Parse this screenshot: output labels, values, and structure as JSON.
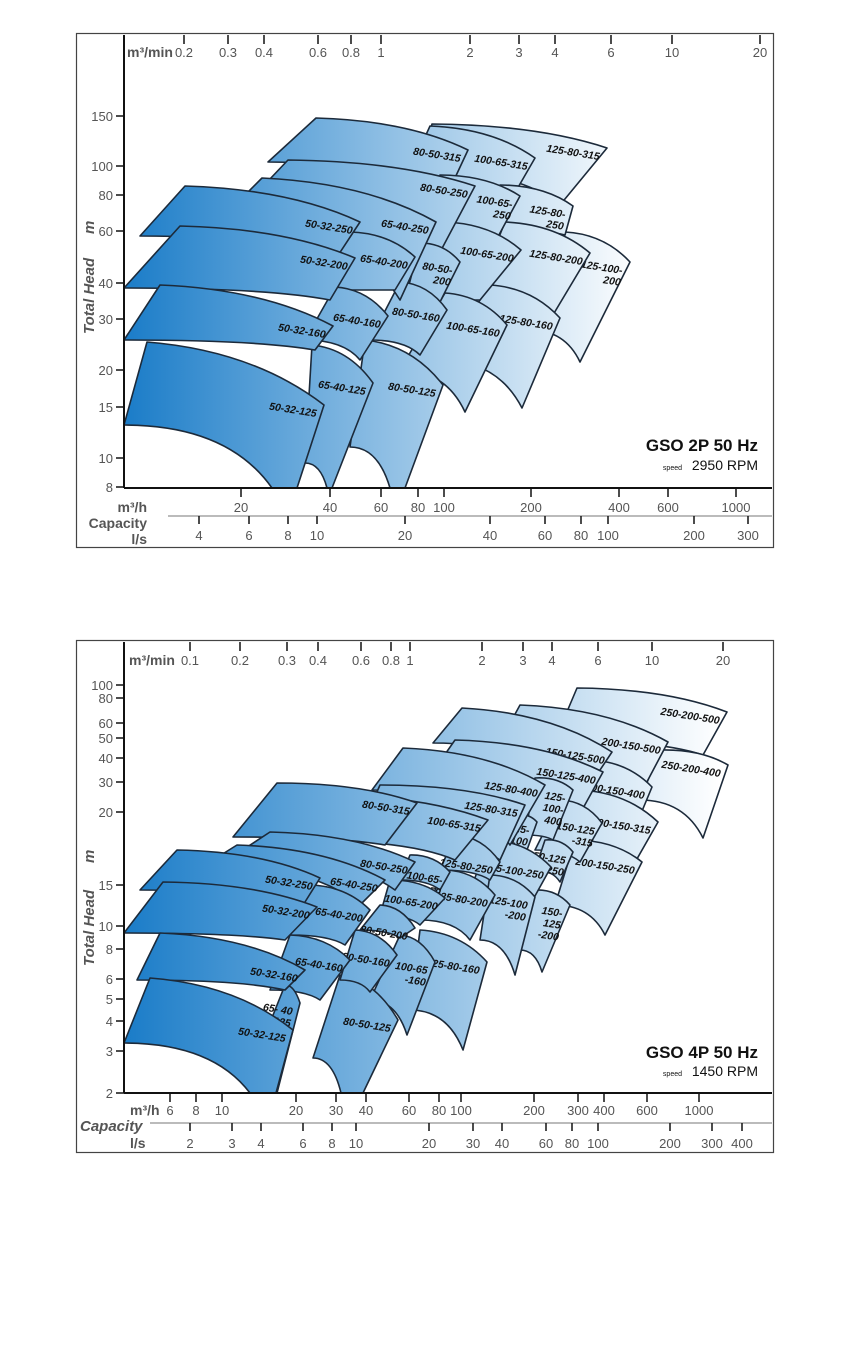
{
  "chart_data": [
    {
      "type": "area",
      "title": "GSO 2P 50 Hz",
      "speed_label": "speed",
      "speed": "2950 RPM",
      "ylabel": "Total Head",
      "yunit": "m",
      "y_scale": "log",
      "y_ticks": [
        "150",
        "100",
        "80",
        "60",
        "40",
        "30",
        "20",
        "15",
        "10",
        "8"
      ],
      "x_top_unit": "m³/min",
      "x_top_ticks": [
        "0.2",
        "0.3",
        "0.4",
        "0.6",
        "0.8",
        "1",
        "2",
        "3",
        "4",
        "6",
        "10",
        "20"
      ],
      "x_m3h_unit": "m³/h",
      "x_m3h_ticks": [
        "20",
        "40",
        "60",
        "80",
        "100",
        "200",
        "400",
        "600",
        "1000"
      ],
      "capacity_label": "Capacity",
      "x_ls_unit": "l/s",
      "x_ls_ticks": [
        "4",
        "6",
        "8",
        "10",
        "20",
        "40",
        "60",
        "80",
        "100",
        "200",
        "300"
      ],
      "regions": [
        "125-80-315",
        "100-65-315",
        "80-50-315",
        "125-100-200",
        "125-80-250",
        "125-80-200",
        "125-80-160",
        "100-65-250",
        "100-65-200",
        "100-65-160",
        "80-50-250",
        "80-50-200",
        "80-50-160",
        "80-50-125",
        "65-40-250",
        "65-40-200",
        "65-40-160",
        "65-40-125",
        "50-32-250",
        "50-32-200",
        "50-32-160",
        "50-32-125"
      ],
      "fill_gradient": [
        "#1a7cc8",
        "#ffffff"
      ]
    },
    {
      "type": "area",
      "title": "GSO 4P 50 Hz",
      "speed_label": "speed",
      "speed": "1450 RPM",
      "ylabel": "Total Head",
      "yunit": "m",
      "y_scale": "log",
      "y_ticks": [
        "100",
        "80",
        "60",
        "50",
        "40",
        "30",
        "20",
        "15",
        "10",
        "8",
        "6",
        "5",
        "4",
        "3",
        "2"
      ],
      "x_top_unit": "m³/min",
      "x_top_ticks": [
        "0.1",
        "0.2",
        "0.3",
        "0.4",
        "0.6",
        "0.8",
        "1",
        "2",
        "3",
        "4",
        "6",
        "10",
        "20"
      ],
      "x_m3h_unit": "m³/h",
      "x_m3h_ticks": [
        "6",
        "8",
        "10",
        "20",
        "30",
        "40",
        "60",
        "80",
        "100",
        "200",
        "300",
        "400",
        "600",
        "1000"
      ],
      "capacity_label": "Capacity",
      "x_ls_unit": "l/s",
      "x_ls_ticks": [
        "2",
        "3",
        "4",
        "6",
        "8",
        "10",
        "20",
        "30",
        "40",
        "60",
        "80",
        "100",
        "200",
        "300",
        "400"
      ],
      "regions": [
        "250-200-500",
        "250-200-400",
        "200-150-500",
        "200-150-400",
        "200-150-315",
        "200-150-250",
        "150-125-500",
        "150-125-400",
        "150-125-315",
        "150-125-250",
        "150-125-200",
        "125-100-400",
        "125-100-315",
        "125-100-250",
        "125-100-200",
        "125-80-400",
        "125-80-315",
        "125-80-250",
        "125-80-200",
        "125-80-160",
        "100-65-315",
        "100-65-250",
        "100-65-200",
        "100-65-160",
        "80-50-315",
        "80-50-250",
        "80-50-200",
        "80-50-125",
        "80-50-160",
        "65-40-250",
        "65-40-200",
        "65-40-160",
        "65-40-125",
        "50-32-250",
        "50-32-200",
        "50-32-160",
        "50-32-125"
      ],
      "fill_gradient": [
        "#1a7cc8",
        "#ffffff"
      ]
    }
  ]
}
